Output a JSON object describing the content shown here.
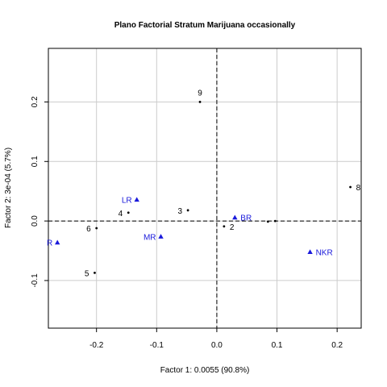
{
  "chart_data": {
    "type": "scatter",
    "title": "Plano Factorial Stratum Marijuana occasionally",
    "xlabel": "Factor 1: 0.0055 (90.8%)",
    "ylabel": "Factor 2: 3e-04 (5.7%)",
    "xlim": [
      -0.28,
      0.24
    ],
    "ylim": [
      -0.18,
      0.29
    ],
    "xticks": [
      -0.2,
      -0.1,
      0.0,
      0.1,
      0.2
    ],
    "yticks": [
      -0.1,
      0.0,
      0.1,
      0.2
    ],
    "xtick_labels": [
      "-0.2",
      "-0.1",
      "0.0",
      "0.1",
      "0.2"
    ],
    "ytick_labels": [
      "-0.1",
      "0.0",
      "0.1",
      "0.2"
    ],
    "grid": true,
    "reference_lines": {
      "x": 0,
      "y": 0,
      "style": "dashed"
    },
    "colors": {
      "rows": "#000000",
      "columns": "#1a1adb",
      "grid": "#cccccc"
    },
    "points": [
      {
        "label": "9",
        "x": -0.028,
        "y": 0.2,
        "group": "rows",
        "marker": "dot",
        "label_pos": "above"
      },
      {
        "label": "8",
        "x": 0.222,
        "y": 0.057,
        "group": "rows",
        "marker": "dot",
        "label_pos": "right"
      },
      {
        "label": "3",
        "x": -0.048,
        "y": 0.018,
        "group": "rows",
        "marker": "dot",
        "label_pos": "left"
      },
      {
        "label": "4",
        "x": -0.147,
        "y": 0.014,
        "group": "rows",
        "marker": "dot",
        "label_pos": "left"
      },
      {
        "label": "6",
        "x": -0.2,
        "y": -0.012,
        "group": "rows",
        "marker": "dot",
        "label_pos": "left"
      },
      {
        "label": "2",
        "x": 0.012,
        "y": -0.009,
        "group": "rows",
        "marker": "dot",
        "label_pos": "right"
      },
      {
        "label": "",
        "x": 0.085,
        "y": -0.001,
        "group": "rows",
        "marker": "dot",
        "label_pos": "none"
      },
      {
        "label": "",
        "x": 0.097,
        "y": 0.0,
        "group": "rows",
        "marker": "dot",
        "label_pos": "none"
      },
      {
        "label": "5",
        "x": -0.203,
        "y": -0.087,
        "group": "rows",
        "marker": "dot",
        "label_pos": "left"
      },
      {
        "label": "LR",
        "x": -0.133,
        "y": 0.036,
        "group": "columns",
        "marker": "triangle",
        "label_pos": "left"
      },
      {
        "label": "BR",
        "x": 0.03,
        "y": 0.006,
        "group": "columns",
        "marker": "triangle",
        "label_pos": "right"
      },
      {
        "label": "MR",
        "x": -0.093,
        "y": -0.026,
        "group": "columns",
        "marker": "triangle",
        "label_pos": "left"
      },
      {
        "label": "R",
        "x": -0.265,
        "y": -0.036,
        "group": "columns",
        "marker": "triangle",
        "label_pos": "left"
      },
      {
        "label": "NKR",
        "x": 0.155,
        "y": -0.052,
        "group": "columns",
        "marker": "triangle",
        "label_pos": "right"
      }
    ]
  }
}
